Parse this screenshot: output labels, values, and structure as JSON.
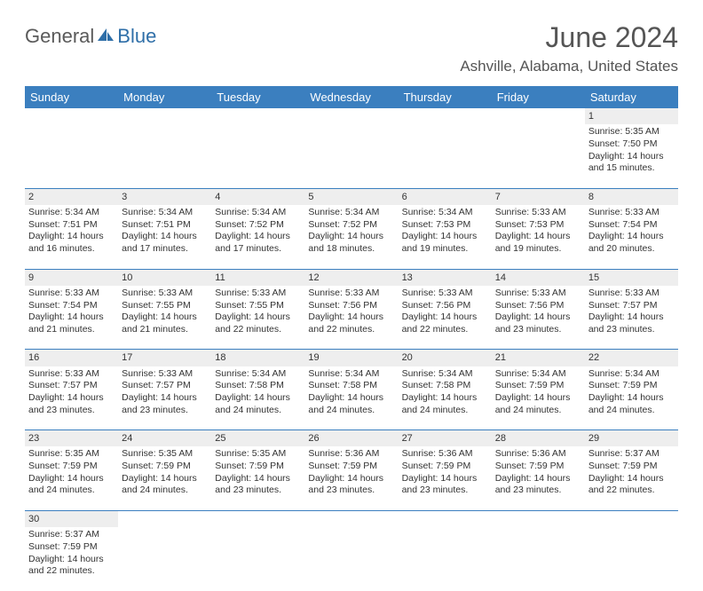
{
  "logo": {
    "part1": "General",
    "part2": "Blue"
  },
  "title": "June 2024",
  "location": "Ashville, Alabama, United States",
  "header_bg": "#3b7fbf",
  "daynum_bg": "#eeeeee",
  "text_color": "#333333",
  "title_color": "#555555",
  "days_of_week": [
    "Sunday",
    "Monday",
    "Tuesday",
    "Wednesday",
    "Thursday",
    "Friday",
    "Saturday"
  ],
  "weeks": [
    {
      "nums": [
        "",
        "",
        "",
        "",
        "",
        "",
        "1"
      ],
      "cells": [
        null,
        null,
        null,
        null,
        null,
        null,
        {
          "sunrise": "5:35 AM",
          "sunset": "7:50 PM",
          "daylight": "14 hours and 15 minutes."
        }
      ]
    },
    {
      "nums": [
        "2",
        "3",
        "4",
        "5",
        "6",
        "7",
        "8"
      ],
      "cells": [
        {
          "sunrise": "5:34 AM",
          "sunset": "7:51 PM",
          "daylight": "14 hours and 16 minutes."
        },
        {
          "sunrise": "5:34 AM",
          "sunset": "7:51 PM",
          "daylight": "14 hours and 17 minutes."
        },
        {
          "sunrise": "5:34 AM",
          "sunset": "7:52 PM",
          "daylight": "14 hours and 17 minutes."
        },
        {
          "sunrise": "5:34 AM",
          "sunset": "7:52 PM",
          "daylight": "14 hours and 18 minutes."
        },
        {
          "sunrise": "5:34 AM",
          "sunset": "7:53 PM",
          "daylight": "14 hours and 19 minutes."
        },
        {
          "sunrise": "5:33 AM",
          "sunset": "7:53 PM",
          "daylight": "14 hours and 19 minutes."
        },
        {
          "sunrise": "5:33 AM",
          "sunset": "7:54 PM",
          "daylight": "14 hours and 20 minutes."
        }
      ]
    },
    {
      "nums": [
        "9",
        "10",
        "11",
        "12",
        "13",
        "14",
        "15"
      ],
      "cells": [
        {
          "sunrise": "5:33 AM",
          "sunset": "7:54 PM",
          "daylight": "14 hours and 21 minutes."
        },
        {
          "sunrise": "5:33 AM",
          "sunset": "7:55 PM",
          "daylight": "14 hours and 21 minutes."
        },
        {
          "sunrise": "5:33 AM",
          "sunset": "7:55 PM",
          "daylight": "14 hours and 22 minutes."
        },
        {
          "sunrise": "5:33 AM",
          "sunset": "7:56 PM",
          "daylight": "14 hours and 22 minutes."
        },
        {
          "sunrise": "5:33 AM",
          "sunset": "7:56 PM",
          "daylight": "14 hours and 22 minutes."
        },
        {
          "sunrise": "5:33 AM",
          "sunset": "7:56 PM",
          "daylight": "14 hours and 23 minutes."
        },
        {
          "sunrise": "5:33 AM",
          "sunset": "7:57 PM",
          "daylight": "14 hours and 23 minutes."
        }
      ]
    },
    {
      "nums": [
        "16",
        "17",
        "18",
        "19",
        "20",
        "21",
        "22"
      ],
      "cells": [
        {
          "sunrise": "5:33 AM",
          "sunset": "7:57 PM",
          "daylight": "14 hours and 23 minutes."
        },
        {
          "sunrise": "5:33 AM",
          "sunset": "7:57 PM",
          "daylight": "14 hours and 23 minutes."
        },
        {
          "sunrise": "5:34 AM",
          "sunset": "7:58 PM",
          "daylight": "14 hours and 24 minutes."
        },
        {
          "sunrise": "5:34 AM",
          "sunset": "7:58 PM",
          "daylight": "14 hours and 24 minutes."
        },
        {
          "sunrise": "5:34 AM",
          "sunset": "7:58 PM",
          "daylight": "14 hours and 24 minutes."
        },
        {
          "sunrise": "5:34 AM",
          "sunset": "7:59 PM",
          "daylight": "14 hours and 24 minutes."
        },
        {
          "sunrise": "5:34 AM",
          "sunset": "7:59 PM",
          "daylight": "14 hours and 24 minutes."
        }
      ]
    },
    {
      "nums": [
        "23",
        "24",
        "25",
        "26",
        "27",
        "28",
        "29"
      ],
      "cells": [
        {
          "sunrise": "5:35 AM",
          "sunset": "7:59 PM",
          "daylight": "14 hours and 24 minutes."
        },
        {
          "sunrise": "5:35 AM",
          "sunset": "7:59 PM",
          "daylight": "14 hours and 24 minutes."
        },
        {
          "sunrise": "5:35 AM",
          "sunset": "7:59 PM",
          "daylight": "14 hours and 23 minutes."
        },
        {
          "sunrise": "5:36 AM",
          "sunset": "7:59 PM",
          "daylight": "14 hours and 23 minutes."
        },
        {
          "sunrise": "5:36 AM",
          "sunset": "7:59 PM",
          "daylight": "14 hours and 23 minutes."
        },
        {
          "sunrise": "5:36 AM",
          "sunset": "7:59 PM",
          "daylight": "14 hours and 23 minutes."
        },
        {
          "sunrise": "5:37 AM",
          "sunset": "7:59 PM",
          "daylight": "14 hours and 22 minutes."
        }
      ]
    },
    {
      "nums": [
        "30",
        "",
        "",
        "",
        "",
        "",
        ""
      ],
      "cells": [
        {
          "sunrise": "5:37 AM",
          "sunset": "7:59 PM",
          "daylight": "14 hours and 22 minutes."
        },
        null,
        null,
        null,
        null,
        null,
        null
      ]
    }
  ],
  "labels": {
    "sunrise": "Sunrise:",
    "sunset": "Sunset:",
    "daylight": "Daylight:"
  }
}
